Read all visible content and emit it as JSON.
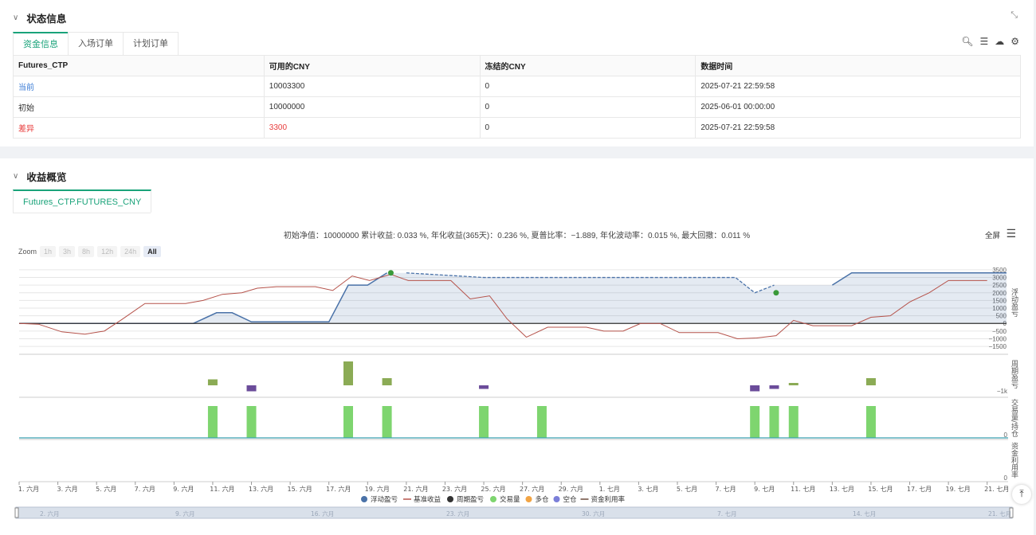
{
  "status": {
    "title": "状态信息",
    "tabs": [
      "资金信息",
      "入场订单",
      "计划订单"
    ],
    "table": {
      "headers": [
        "Futures_CTP",
        "可用的CNY",
        "冻结的CNY",
        "数据时间"
      ],
      "rows": [
        [
          "当前",
          "10003300",
          "0",
          "2025-07-21 22:59:58"
        ],
        [
          "初始",
          "10000000",
          "0",
          "2025-06-01 00:00:00"
        ],
        [
          "差异",
          "3300",
          "0",
          "2025-07-21 22:59:58"
        ]
      ]
    }
  },
  "profit": {
    "title": "收益概览",
    "tab": "Futures_CTP.FUTURES_CNY",
    "summary": "初始净值：10000000 累计收益: 0.033 %, 年化收益(365天)：0.236 %, 夏普比率：−1.889, 年化波动率：0.015 %, 最大回撤：0.011 %",
    "fullscreen": "全屏",
    "zoom_label": "Zoom",
    "zoom_buttons": [
      "1h",
      "3h",
      "8h",
      "12h",
      "24h",
      "All"
    ],
    "selected_zoom": "All"
  },
  "chart_data": {
    "type": "line",
    "x_ticks": [
      "1. 六月",
      "3. 六月",
      "5. 六月",
      "7. 六月",
      "9. 六月",
      "11. 六月",
      "13. 六月",
      "15. 六月",
      "17. 六月",
      "19. 六月",
      "21. 六月",
      "23. 六月",
      "25. 六月",
      "27. 六月",
      "29. 六月",
      "1. 七月",
      "3. 七月",
      "5. 七月",
      "7. 七月",
      "9. 七月",
      "11. 七月",
      "13. 七月",
      "15. 七月",
      "17. 七月",
      "19. 七月",
      "21. 七月"
    ],
    "navigator_ticks": [
      "2. 六月",
      "9. 六月",
      "16. 六月",
      "23. 六月",
      "30. 六月",
      "7. 七月",
      "14. 七月",
      "21. 七月"
    ],
    "y_ticks_main": [
      "3500",
      "3000",
      "2500",
      "2000",
      "1500",
      "1000",
      "500",
      "0",
      "−500",
      "−1000",
      "−1500"
    ],
    "axis_titles": [
      "浮动盈亏",
      "周期盈亏",
      "交易量/持仓",
      "资金利用率"
    ],
    "y_tick_period": "−1k",
    "y_tick_volume": "0",
    "y_tick_util": "0",
    "ylim_main": [
      -1600,
      3600
    ],
    "series": [
      {
        "name": "浮动盈亏",
        "color": "#4a72a8",
        "values": [
          [
            0,
            0
          ],
          [
            9,
            0
          ],
          [
            10.2,
            700
          ],
          [
            11,
            700
          ],
          [
            12,
            100
          ],
          [
            16,
            100
          ],
          [
            17,
            2500
          ],
          [
            18,
            2500
          ],
          [
            19,
            3300
          ],
          [
            20,
            3300
          ],
          [
            24,
            3000
          ],
          [
            37,
            3000
          ],
          [
            38,
            2000
          ],
          [
            39,
            2500
          ],
          [
            42,
            2500
          ],
          [
            43,
            3300
          ],
          [
            51,
            3300
          ]
        ]
      },
      {
        "name": "基准收益",
        "color": "#b5524a",
        "values": [
          [
            0,
            0
          ],
          [
            1,
            -50
          ],
          [
            2.2,
            -550
          ],
          [
            3.4,
            -700
          ],
          [
            4.4,
            -500
          ],
          [
            5.3,
            250
          ],
          [
            6.5,
            1300
          ],
          [
            7.7,
            1300
          ],
          [
            8.6,
            1300
          ],
          [
            9.5,
            1500
          ],
          [
            10.5,
            1900
          ],
          [
            11.5,
            2000
          ],
          [
            12.3,
            2300
          ],
          [
            13.3,
            2400
          ],
          [
            14.3,
            2400
          ],
          [
            15.3,
            2400
          ],
          [
            16.2,
            2150
          ],
          [
            17.2,
            3100
          ],
          [
            18.1,
            2800
          ],
          [
            19.2,
            3200
          ],
          [
            20.1,
            2800
          ],
          [
            21.3,
            2800
          ],
          [
            22.3,
            2800
          ],
          [
            23.3,
            1600
          ],
          [
            24.3,
            1800
          ],
          [
            25.2,
            300
          ],
          [
            26.2,
            -900
          ],
          [
            27.3,
            -250
          ],
          [
            28.3,
            -250
          ],
          [
            29.3,
            -250
          ],
          [
            30.2,
            -500
          ],
          [
            31.2,
            -500
          ],
          [
            32.1,
            0
          ],
          [
            33.1,
            0
          ],
          [
            34.1,
            -600
          ],
          [
            35.1,
            -600
          ],
          [
            36.1,
            -600
          ],
          [
            37.1,
            -1000
          ],
          [
            38.1,
            -950
          ],
          [
            39.1,
            -800
          ],
          [
            40,
            200
          ],
          [
            41,
            -150
          ],
          [
            42,
            -150
          ],
          [
            43,
            -150
          ],
          [
            44,
            400
          ],
          [
            45,
            500
          ],
          [
            46,
            1400
          ],
          [
            47,
            2000
          ],
          [
            48,
            2800
          ],
          [
            49,
            2800
          ],
          [
            50,
            2800
          ]
        ]
      }
    ],
    "markers": [
      {
        "x": 19.2,
        "y": 3300
      },
      {
        "x": 39.1,
        "y": 2000
      }
    ],
    "period_bars": [
      {
        "x": 10,
        "value": 500,
        "color": "#8bab55"
      },
      {
        "x": 12,
        "value": -500,
        "color": "#6b4c9a"
      },
      {
        "x": 17,
        "value": 2000,
        "color": "#8bab55"
      },
      {
        "x": 19,
        "value": 600,
        "color": "#8bab55"
      },
      {
        "x": 24,
        "value": -300,
        "color": "#6b4c9a"
      },
      {
        "x": 38,
        "value": -500,
        "color": "#6b4c9a"
      },
      {
        "x": 39,
        "value": -300,
        "color": "#6b4c9a"
      },
      {
        "x": 40,
        "value": 200,
        "color": "#8bab55"
      },
      {
        "x": 44,
        "value": 600,
        "color": "#8bab55"
      }
    ],
    "volume_bars": [
      10,
      12,
      17,
      19,
      24,
      27,
      38,
      39,
      40,
      44
    ],
    "legend": [
      {
        "name": "浮动盈亏",
        "kind": "dot",
        "color": "#4a72a8"
      },
      {
        "name": "基准收益",
        "kind": "line",
        "color": "#b5524a"
      },
      {
        "name": "周期盈亏",
        "kind": "dot",
        "color": "#333333"
      },
      {
        "name": "交易量",
        "kind": "dot",
        "color": "#7ed56f"
      },
      {
        "name": "多仓",
        "kind": "dot",
        "color": "#f2a444"
      },
      {
        "name": "空仓",
        "kind": "dot",
        "color": "#7b7fd9"
      },
      {
        "name": "资金利用率",
        "kind": "line",
        "color": "#6b4a3a"
      }
    ]
  }
}
